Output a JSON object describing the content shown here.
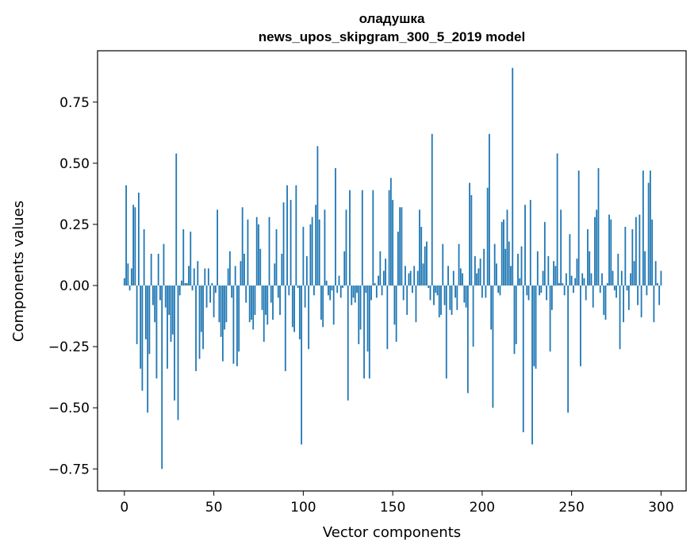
{
  "chart_data": {
    "type": "bar",
    "title": "оладушка",
    "subtitle": "news_upos_skipgram_300_5_2019 model",
    "xlabel": "Vector components",
    "ylabel": "Components values",
    "xlim": [
      -15,
      314
    ],
    "ylim": [
      -0.84,
      0.96
    ],
    "x_ticks": [
      0,
      50,
      100,
      150,
      200,
      250,
      300
    ],
    "y_ticks": [
      -0.75,
      -0.5,
      -0.25,
      0.0,
      0.25,
      0.5,
      0.75
    ],
    "y_tick_labels": [
      "−0.75",
      "−0.50",
      "−0.25",
      "0.00",
      "0.25",
      "0.50",
      "0.75"
    ],
    "grid": false,
    "legend": "none",
    "bar_color": "#1f77b4",
    "x": "0..299 (vector component index)",
    "values": [
      0.03,
      0.41,
      0.09,
      -0.02,
      0.07,
      0.33,
      0.32,
      -0.24,
      0.38,
      -0.34,
      -0.43,
      0.23,
      -0.22,
      -0.52,
      -0.28,
      0.13,
      -0.08,
      -0.15,
      -0.38,
      0.13,
      -0.06,
      -0.75,
      0.17,
      -0.09,
      -0.34,
      -0.12,
      -0.23,
      -0.2,
      -0.47,
      0.54,
      -0.55,
      -0.04,
      0.02,
      0.23,
      0.01,
      0.01,
      0.08,
      0.22,
      -0.02,
      0.07,
      -0.35,
      0.1,
      -0.3,
      -0.19,
      -0.26,
      0.07,
      -0.09,
      0.07,
      -0.07,
      0.01,
      -0.13,
      -0.03,
      0.31,
      -0.15,
      -0.21,
      -0.31,
      -0.18,
      -0.15,
      0.07,
      0.14,
      -0.05,
      -0.32,
      0.08,
      -0.33,
      -0.27,
      0.1,
      0.32,
      0.13,
      -0.07,
      0.27,
      -0.15,
      -0.14,
      -0.18,
      -0.12,
      0.28,
      0.25,
      0.15,
      -0.1,
      -0.23,
      -0.12,
      -0.16,
      0.28,
      -0.07,
      -0.14,
      0.09,
      0.23,
      -0.05,
      -0.12,
      0.13,
      0.34,
      -0.35,
      0.41,
      -0.04,
      0.35,
      -0.17,
      -0.19,
      0.41,
      -0.01,
      -0.22,
      -0.65,
      0.24,
      -0.09,
      0.12,
      -0.26,
      0.25,
      0.28,
      -0.04,
      0.33,
      0.57,
      0.27,
      -0.14,
      -0.17,
      0.31,
      0.02,
      -0.04,
      -0.06,
      -0.02,
      -0.16,
      0.48,
      -0.03,
      0.04,
      -0.05,
      -0.01,
      0.14,
      0.31,
      -0.47,
      0.39,
      -0.08,
      -0.05,
      -0.07,
      -0.03,
      -0.24,
      -0.18,
      0.39,
      -0.38,
      -0.03,
      -0.27,
      -0.38,
      -0.06,
      0.39,
      0.01,
      -0.05,
      0.04,
      0.14,
      -0.04,
      0.06,
      0.11,
      -0.26,
      0.39,
      0.44,
      0.35,
      -0.16,
      -0.23,
      0.22,
      0.32,
      0.32,
      -0.06,
      0.08,
      -0.12,
      0.05,
      0.06,
      -0.03,
      0.08,
      -0.15,
      0.06,
      0.31,
      0.24,
      0.09,
      0.16,
      0.18,
      -0.01,
      -0.06,
      0.62,
      -0.08,
      -0.03,
      -0.04,
      -0.13,
      -0.12,
      0.17,
      -0.08,
      -0.38,
      0.08,
      -0.1,
      -0.12,
      0.06,
      -0.05,
      -0.1,
      0.17,
      0.07,
      0.05,
      -0.07,
      -0.09,
      -0.44,
      0.42,
      0.37,
      -0.25,
      0.12,
      0.05,
      0.07,
      0.11,
      -0.05,
      0.15,
      -0.05,
      0.4,
      0.62,
      -0.18,
      -0.5,
      0.17,
      0.09,
      -0.03,
      -0.04,
      0.26,
      0.27,
      0.15,
      0.31,
      0.18,
      0.08,
      0.89,
      -0.28,
      -0.24,
      0.13,
      0.03,
      0.16,
      -0.6,
      0.33,
      -0.04,
      -0.06,
      0.35,
      -0.65,
      -0.33,
      -0.34,
      0.14,
      -0.04,
      -0.03,
      0.06,
      0.26,
      -0.06,
      0.12,
      -0.27,
      -0.1,
      0.1,
      0.08,
      0.54,
      0.01,
      0.31,
      0.01,
      -0.04,
      0.05,
      -0.52,
      0.21,
      0.04,
      -0.03,
      0.03,
      0.11,
      0.47,
      -0.33,
      0.05,
      0.03,
      -0.06,
      0.23,
      0.14,
      0.05,
      -0.09,
      0.28,
      0.31,
      0.48,
      -0.03,
      0.05,
      -0.12,
      -0.14,
      0.01,
      0.29,
      0.27,
      0.06,
      -0.02,
      -0.05,
      0.13,
      -0.26,
      0.06,
      -0.15,
      0.24,
      -0.02,
      -0.1,
      0.05,
      0.23,
      0.1,
      0.28,
      -0.08,
      0.29,
      -0.13,
      0.47,
      0.14,
      -0.04,
      0.42,
      0.47,
      0.27,
      -0.15,
      0.1,
      0.01,
      -0.08,
      0.06
    ]
  }
}
